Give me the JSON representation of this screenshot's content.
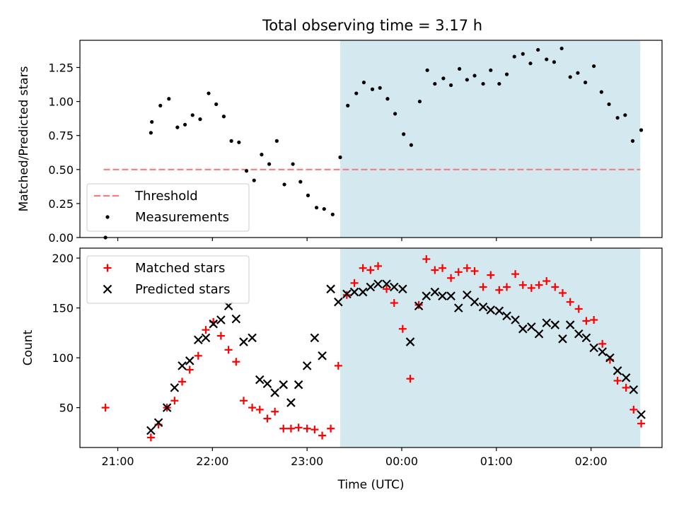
{
  "chart_data": [
    {
      "type": "scatter",
      "title": "Total observing time = 3.17 h",
      "xlabel": "",
      "ylabel": "Matched/Predicted stars",
      "ylim": [
        0,
        1.45
      ],
      "yticks": [
        "0.00",
        "0.25",
        "0.50",
        "0.75",
        "1.00",
        "1.25"
      ],
      "x_unit": "hours since 00:00 UTC",
      "xlim": [
        -3.4,
        2.75
      ],
      "shaded_x": [
        -0.65,
        2.52
      ],
      "shade_color": "#d3e9ef",
      "threshold": {
        "name": "Threshold",
        "value": 0.5,
        "x": [
          -3.15,
          2.52
        ],
        "color": "#f08080"
      },
      "series": [
        {
          "name": "Measurements",
          "color": "#000000",
          "marker": "dot",
          "points": [
            [
              -3.13,
              0.0
            ],
            [
              -2.65,
              0.77
            ],
            [
              -2.64,
              0.85
            ],
            [
              -2.55,
              0.97
            ],
            [
              -2.46,
              1.02
            ],
            [
              -2.37,
              0.81
            ],
            [
              -2.29,
              0.83
            ],
            [
              -2.21,
              0.9
            ],
            [
              -2.13,
              0.87
            ],
            [
              -2.04,
              1.06
            ],
            [
              -1.96,
              0.98
            ],
            [
              -1.88,
              0.89
            ],
            [
              -1.8,
              0.71
            ],
            [
              -1.72,
              0.7
            ],
            [
              -1.64,
              0.49
            ],
            [
              -1.56,
              0.42
            ],
            [
              -1.48,
              0.61
            ],
            [
              -1.4,
              0.54
            ],
            [
              -1.32,
              0.71
            ],
            [
              -1.24,
              0.39
            ],
            [
              -1.15,
              0.54
            ],
            [
              -1.07,
              0.41
            ],
            [
              -0.99,
              0.31
            ],
            [
              -0.9,
              0.22
            ],
            [
              -0.82,
              0.21
            ],
            [
              -0.73,
              0.17
            ],
            [
              -0.65,
              0.59
            ],
            [
              -0.57,
              0.97
            ],
            [
              -0.48,
              1.06
            ],
            [
              -0.4,
              1.14
            ],
            [
              -0.31,
              1.09
            ],
            [
              -0.23,
              1.1
            ],
            [
              -0.15,
              1.02
            ],
            [
              -0.07,
              0.91
            ],
            [
              0.02,
              0.76
            ],
            [
              0.1,
              0.68
            ],
            [
              0.19,
              1.0
            ],
            [
              0.27,
              1.23
            ],
            [
              0.35,
              1.13
            ],
            [
              0.44,
              1.17
            ],
            [
              0.52,
              1.12
            ],
            [
              0.61,
              1.24
            ],
            [
              0.69,
              1.16
            ],
            [
              0.77,
              1.19
            ],
            [
              0.86,
              1.13
            ],
            [
              0.94,
              1.23
            ],
            [
              1.03,
              1.13
            ],
            [
              1.11,
              1.2
            ],
            [
              1.19,
              1.33
            ],
            [
              1.28,
              1.35
            ],
            [
              1.36,
              1.28
            ],
            [
              1.44,
              1.38
            ],
            [
              1.53,
              1.31
            ],
            [
              1.61,
              1.29
            ],
            [
              1.69,
              1.39
            ],
            [
              1.78,
              1.18
            ],
            [
              1.86,
              1.21
            ],
            [
              1.94,
              1.14
            ],
            [
              2.03,
              1.26
            ],
            [
              2.11,
              1.07
            ],
            [
              2.19,
              0.98
            ],
            [
              2.28,
              0.88
            ],
            [
              2.36,
              0.9
            ],
            [
              2.44,
              0.71
            ],
            [
              2.53,
              0.79
            ]
          ]
        }
      ],
      "legend": {
        "placement": "lower-left",
        "entries": [
          "Threshold",
          "Measurements"
        ]
      }
    },
    {
      "type": "scatter",
      "title": "",
      "xlabel": "Time (UTC)",
      "ylabel": "Count",
      "ylim": [
        10,
        210
      ],
      "yticks": [
        "50",
        "100",
        "150",
        "200"
      ],
      "x_unit": "hours since 00:00 UTC",
      "xlim": [
        -3.4,
        2.75
      ],
      "xticks": [
        "21:00",
        "22:00",
        "23:00",
        "00:00",
        "01:00",
        "02:00"
      ],
      "shaded_x": [
        -0.65,
        2.52
      ],
      "shade_color": "#d3e9ef",
      "series": [
        {
          "name": "Matched stars",
          "color": "#ff0000",
          "marker": "plus",
          "points": [
            [
              -3.13,
              50
            ],
            [
              -2.65,
              20
            ],
            [
              -2.57,
              33
            ],
            [
              -2.48,
              50
            ],
            [
              -2.4,
              57
            ],
            [
              -2.32,
              76
            ],
            [
              -2.24,
              88
            ],
            [
              -2.15,
              102
            ],
            [
              -2.07,
              128
            ],
            [
              -1.99,
              136
            ],
            [
              -1.91,
              122
            ],
            [
              -1.83,
              108
            ],
            [
              -1.75,
              96
            ],
            [
              -1.67,
              57
            ],
            [
              -1.58,
              50
            ],
            [
              -1.5,
              48
            ],
            [
              -1.42,
              39
            ],
            [
              -1.34,
              46
            ],
            [
              -1.25,
              29
            ],
            [
              -1.17,
              29
            ],
            [
              -1.09,
              30
            ],
            [
              -1.0,
              29
            ],
            [
              -0.92,
              28
            ],
            [
              -0.84,
              22
            ],
            [
              -0.75,
              29
            ],
            [
              -0.67,
              92
            ],
            [
              -0.58,
              163
            ],
            [
              -0.5,
              175
            ],
            [
              -0.41,
              190
            ],
            [
              -0.33,
              188
            ],
            [
              -0.25,
              192
            ],
            [
              -0.16,
              169
            ],
            [
              -0.08,
              155
            ],
            [
              0.01,
              129
            ],
            [
              0.09,
              79
            ],
            [
              0.18,
              153
            ],
            [
              0.26,
              199
            ],
            [
              0.35,
              188
            ],
            [
              0.43,
              190
            ],
            [
              0.52,
              180
            ],
            [
              0.6,
              186
            ],
            [
              0.69,
              190
            ],
            [
              0.77,
              187
            ],
            [
              0.86,
              171
            ],
            [
              0.94,
              183
            ],
            [
              1.03,
              168
            ],
            [
              1.11,
              171
            ],
            [
              1.2,
              184
            ],
            [
              1.28,
              173
            ],
            [
              1.37,
              170
            ],
            [
              1.45,
              173
            ],
            [
              1.53,
              177
            ],
            [
              1.62,
              171
            ],
            [
              1.7,
              165
            ],
            [
              1.78,
              156
            ],
            [
              1.87,
              149
            ],
            [
              1.95,
              137
            ],
            [
              2.03,
              138
            ],
            [
              2.12,
              114
            ],
            [
              2.2,
              98
            ],
            [
              2.28,
              77
            ],
            [
              2.37,
              70
            ],
            [
              2.45,
              48
            ],
            [
              2.53,
              34
            ]
          ]
        },
        {
          "name": "Predicted stars",
          "color": "#000000",
          "marker": "x",
          "points": [
            [
              -2.65,
              27
            ],
            [
              -2.57,
              35
            ],
            [
              -2.48,
              50
            ],
            [
              -2.4,
              70
            ],
            [
              -2.32,
              92
            ],
            [
              -2.24,
              97
            ],
            [
              -2.15,
              118
            ],
            [
              -2.07,
              120
            ],
            [
              -1.99,
              134
            ],
            [
              -1.91,
              138
            ],
            [
              -1.83,
              152
            ],
            [
              -1.75,
              139
            ],
            [
              -1.67,
              116
            ],
            [
              -1.58,
              120
            ],
            [
              -1.5,
              78
            ],
            [
              -1.42,
              74
            ],
            [
              -1.34,
              65
            ],
            [
              -1.25,
              73
            ],
            [
              -1.17,
              55
            ],
            [
              -1.09,
              73
            ],
            [
              -1.0,
              92
            ],
            [
              -0.92,
              120
            ],
            [
              -0.84,
              102
            ],
            [
              -0.75,
              169
            ],
            [
              -0.67,
              156
            ],
            [
              -0.58,
              164
            ],
            [
              -0.5,
              166
            ],
            [
              -0.41,
              166
            ],
            [
              -0.33,
              171
            ],
            [
              -0.25,
              174
            ],
            [
              -0.16,
              174
            ],
            [
              -0.08,
              171
            ],
            [
              0.01,
              169
            ],
            [
              0.09,
              116
            ],
            [
              0.18,
              152
            ],
            [
              0.26,
              162
            ],
            [
              0.35,
              166
            ],
            [
              0.43,
              162
            ],
            [
              0.52,
              162
            ],
            [
              0.6,
              150
            ],
            [
              0.69,
              163
            ],
            [
              0.77,
              156
            ],
            [
              0.86,
              151
            ],
            [
              0.94,
              148
            ],
            [
              1.03,
              147
            ],
            [
              1.11,
              142
            ],
            [
              1.2,
              138
            ],
            [
              1.28,
              129
            ],
            [
              1.37,
              131
            ],
            [
              1.45,
              124
            ],
            [
              1.53,
              135
            ],
            [
              1.62,
              133
            ],
            [
              1.7,
              119
            ],
            [
              1.78,
              133
            ],
            [
              1.87,
              124
            ],
            [
              1.95,
              120
            ],
            [
              2.03,
              110
            ],
            [
              2.12,
              106
            ],
            [
              2.2,
              100
            ],
            [
              2.28,
              87
            ],
            [
              2.37,
              80
            ],
            [
              2.45,
              68
            ],
            [
              2.53,
              43
            ]
          ]
        }
      ],
      "legend": {
        "placement": "upper-left",
        "entries": [
          "Matched stars",
          "Predicted stars"
        ]
      }
    }
  ]
}
